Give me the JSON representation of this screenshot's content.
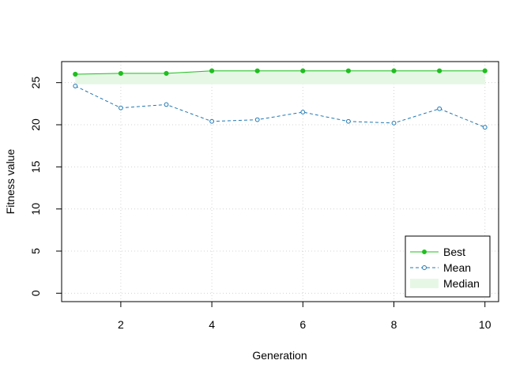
{
  "chart_data": {
    "type": "line",
    "title": "",
    "xlabel": "Generation",
    "ylabel": "Fitness value",
    "x": [
      1,
      2,
      3,
      4,
      5,
      6,
      7,
      8,
      9,
      10
    ],
    "xlim": [
      0.7,
      10.3
    ],
    "ylim": [
      -1.0,
      27.5
    ],
    "xticks": [
      2,
      4,
      6,
      8,
      10
    ],
    "yticks": [
      0,
      5,
      10,
      15,
      20,
      25
    ],
    "grid": true,
    "legend_position": "bottom-right",
    "series": [
      {
        "name": "Best",
        "kind": "line",
        "color": "#1fbf1f",
        "marker": "filled-circle",
        "linestyle": "solid",
        "values": [
          26.0,
          26.1,
          26.1,
          26.4,
          26.4,
          26.4,
          26.4,
          26.4,
          26.4,
          26.4
        ]
      },
      {
        "name": "Mean",
        "kind": "line",
        "color": "#1f78b4",
        "marker": "open-circle",
        "linestyle": "dashed",
        "values": [
          24.6,
          22.0,
          22.4,
          20.4,
          20.6,
          21.5,
          20.4,
          20.2,
          21.9,
          19.7
        ]
      },
      {
        "name": "Median",
        "kind": "band",
        "color": "#e6f7e6",
        "lower": [
          24.8,
          24.8,
          24.8,
          24.8,
          24.8,
          24.8,
          24.8,
          24.8,
          24.8,
          24.8
        ],
        "upper": [
          26.0,
          26.1,
          26.1,
          26.4,
          26.4,
          26.4,
          26.4,
          26.4,
          26.4,
          26.4
        ]
      }
    ]
  }
}
